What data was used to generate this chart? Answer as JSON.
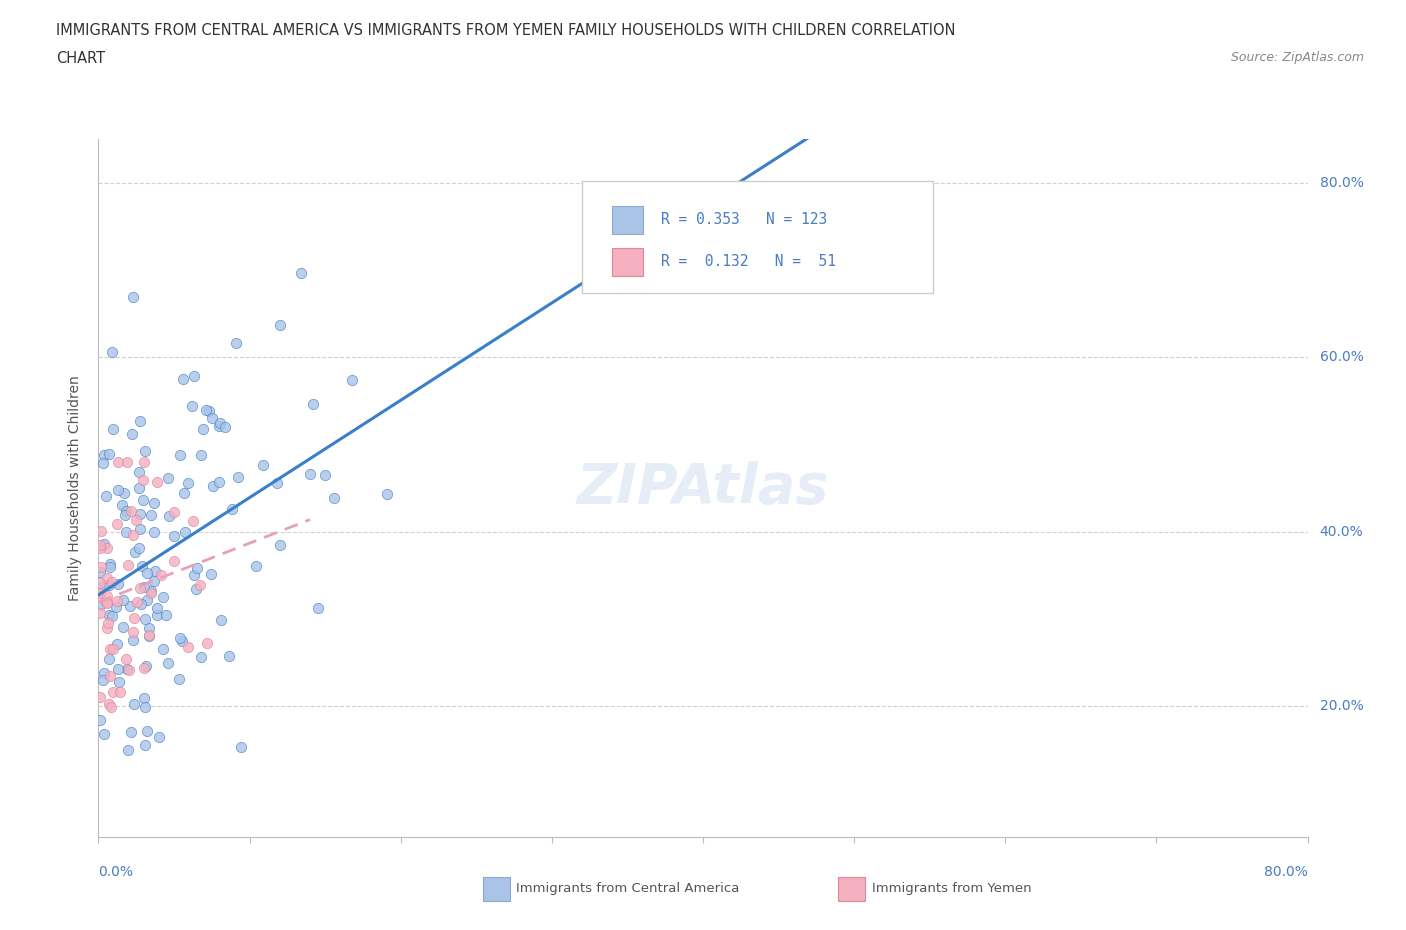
{
  "title_line1": "IMMIGRANTS FROM CENTRAL AMERICA VS IMMIGRANTS FROM YEMEN FAMILY HOUSEHOLDS WITH CHILDREN CORRELATION",
  "title_line2": "CHART",
  "source_text": "Source: ZipAtlas.com",
  "r_central_america": 0.353,
  "n_central_america": 123,
  "r_yemen": 0.132,
  "n_yemen": 51,
  "color_central_america": "#aac4e8",
  "color_yemen": "#f5b0c0",
  "line_color_central_america": "#3a7fc8",
  "line_color_yemen": "#e8a0b8",
  "xlabel": "Immigrants from Central America",
  "xlabel2": "Immigrants from Yemen",
  "ylabel": "Family Households with Children",
  "xmin": 0.0,
  "xmax": 0.8,
  "ymin": 0.05,
  "ymax": 0.85,
  "watermark": "ZIPAtlas",
  "tick_color": "#4a7cc4",
  "grid_color": "#cccccc",
  "title_color": "#333333",
  "source_color": "#888888"
}
